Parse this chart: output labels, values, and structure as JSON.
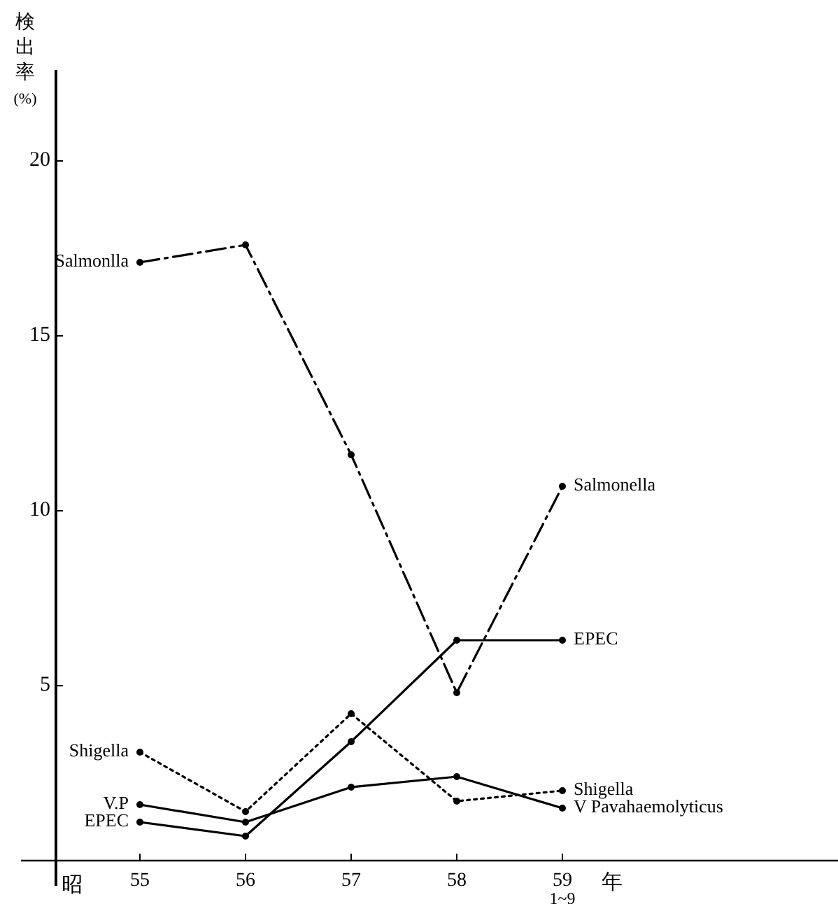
{
  "chart_data": {
    "type": "line",
    "ylabel": "検出率\n(%)",
    "xlabel": "年",
    "categories": [
      "55",
      "56",
      "57",
      "58",
      "59\n1~9"
    ],
    "ylim": [
      0,
      22.6
    ],
    "yticks": [
      5,
      10,
      15,
      20
    ],
    "grid": false,
    "marker": "circle",
    "series": [
      {
        "name": "Salmonella",
        "color": "#000000",
        "line_style": "dashed",
        "values": [
          17.1,
          17.6,
          11.6,
          4.8,
          10.7
        ]
      },
      {
        "name": "EPEC",
        "color": "#000000",
        "line_style": "solid",
        "values": [
          1.1,
          0.7,
          3.4,
          6.3,
          6.3
        ]
      },
      {
        "name": "Shigella",
        "color": "#000000",
        "line_style": "dotted",
        "values": [
          3.1,
          1.4,
          4.2,
          1.7,
          2.0
        ]
      },
      {
        "name": "V  Pavahaemolyticus",
        "color": "#000000",
        "line_style": "solid",
        "values": [
          1.6,
          1.1,
          2.1,
          2.4,
          1.5
        ]
      }
    ],
    "annotations": [
      {
        "text": "Salmonlla",
        "x": "55",
        "y": 17.1
      },
      {
        "text": "Shigella",
        "x": "55",
        "y": 3.1
      },
      {
        "text": "V.P",
        "x": "55",
        "y": 1.6
      },
      {
        "text": "EPEC",
        "x": "55",
        "y": 1.1
      },
      "昭"
    ]
  }
}
